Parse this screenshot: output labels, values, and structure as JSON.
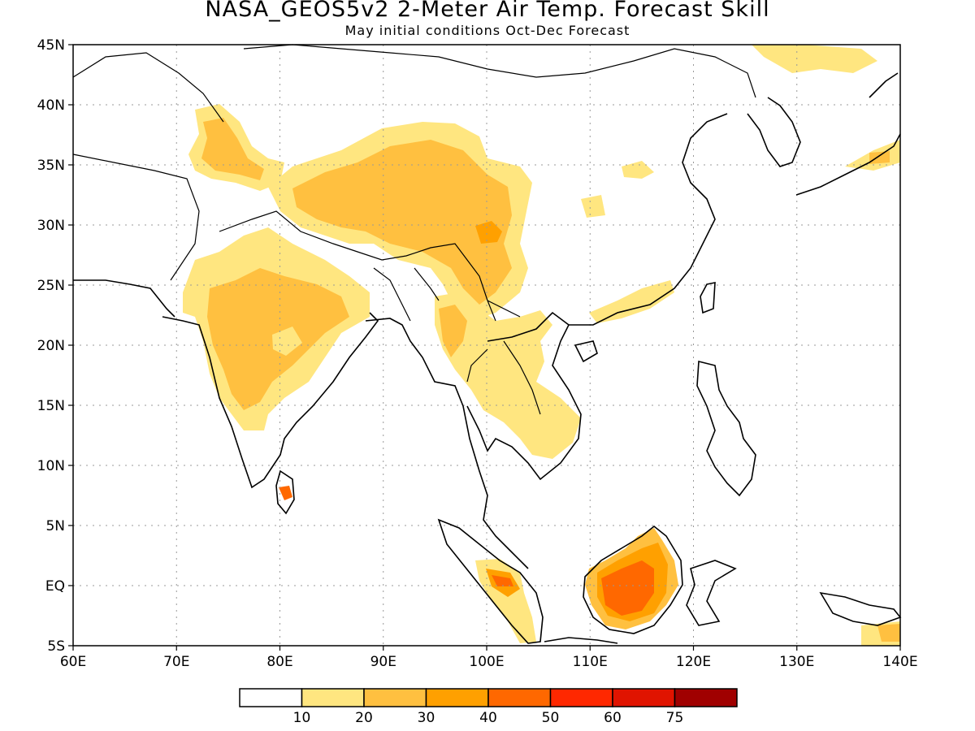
{
  "title": "NASA_GEOS5v2 2-Meter Air Temp. Forecast Skill",
  "subtitle": "May initial conditions  Oct-Dec Forecast",
  "map": {
    "lon_range": [
      60,
      140
    ],
    "lat_range": [
      -5,
      45
    ],
    "lon_ticks": [
      "60E",
      "70E",
      "80E",
      "90E",
      "100E",
      "110E",
      "120E",
      "130E",
      "140E"
    ],
    "lat_ticks": [
      "45N",
      "40N",
      "35N",
      "30N",
      "25N",
      "20N",
      "15N",
      "10N",
      "5N",
      "EQ",
      "5S"
    ],
    "gridlines": "dotted"
  },
  "colorbar": {
    "colors": [
      "#ffffff",
      "#ffe680",
      "#ffc040",
      "#ffa000",
      "#ff6800",
      "#ff2800",
      "#e01400",
      "#a00000"
    ],
    "labels": [
      "10",
      "20",
      "30",
      "40",
      "50",
      "60",
      "75"
    ]
  }
}
